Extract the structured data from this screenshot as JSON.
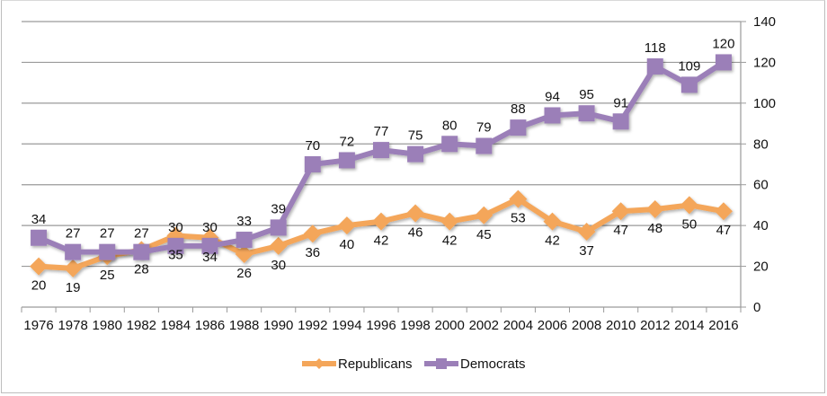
{
  "chart_data": {
    "type": "line",
    "title": "",
    "xlabel": "",
    "ylabel": "",
    "categories": [
      "1976",
      "1978",
      "1980",
      "1982",
      "1984",
      "1986",
      "1988",
      "1990",
      "1992",
      "1994",
      "1996",
      "1998",
      "2000",
      "2002",
      "2004",
      "2006",
      "2008",
      "2010",
      "2012",
      "2014",
      "2016"
    ],
    "y_axis": {
      "position": "right",
      "min": 0,
      "max": 140,
      "step": 20,
      "ticks": [
        "0",
        "20",
        "40",
        "60",
        "80",
        "100",
        "120",
        "140"
      ]
    },
    "grid": true,
    "legend": "bottom",
    "series": [
      {
        "name": "Republicans",
        "color": "#f4a65a",
        "marker": "diamond",
        "values": [
          20,
          19,
          25,
          28,
          35,
          34,
          26,
          30,
          36,
          40,
          42,
          46,
          42,
          45,
          53,
          42,
          37,
          47,
          48,
          50,
          47
        ],
        "labels": [
          "20",
          "19",
          "25",
          "28",
          "35",
          "34",
          "26",
          "30",
          "36",
          "40",
          "42",
          "46",
          "42",
          "45",
          "53",
          "42",
          "37",
          "47",
          "48",
          "50",
          "47"
        ]
      },
      {
        "name": "Democrats",
        "color": "#9b7fb8",
        "marker": "square",
        "values": [
          34,
          27,
          27,
          27,
          30,
          30,
          33,
          39,
          70,
          72,
          77,
          75,
          80,
          79,
          88,
          94,
          95,
          91,
          118,
          109,
          120
        ],
        "labels": [
          "34",
          "27",
          "27",
          "27",
          "30",
          "30",
          "33",
          "39",
          "70",
          "72",
          "77",
          "75",
          "80",
          "79",
          "88",
          "94",
          "95",
          "91",
          "118",
          "109",
          "120"
        ]
      }
    ]
  }
}
